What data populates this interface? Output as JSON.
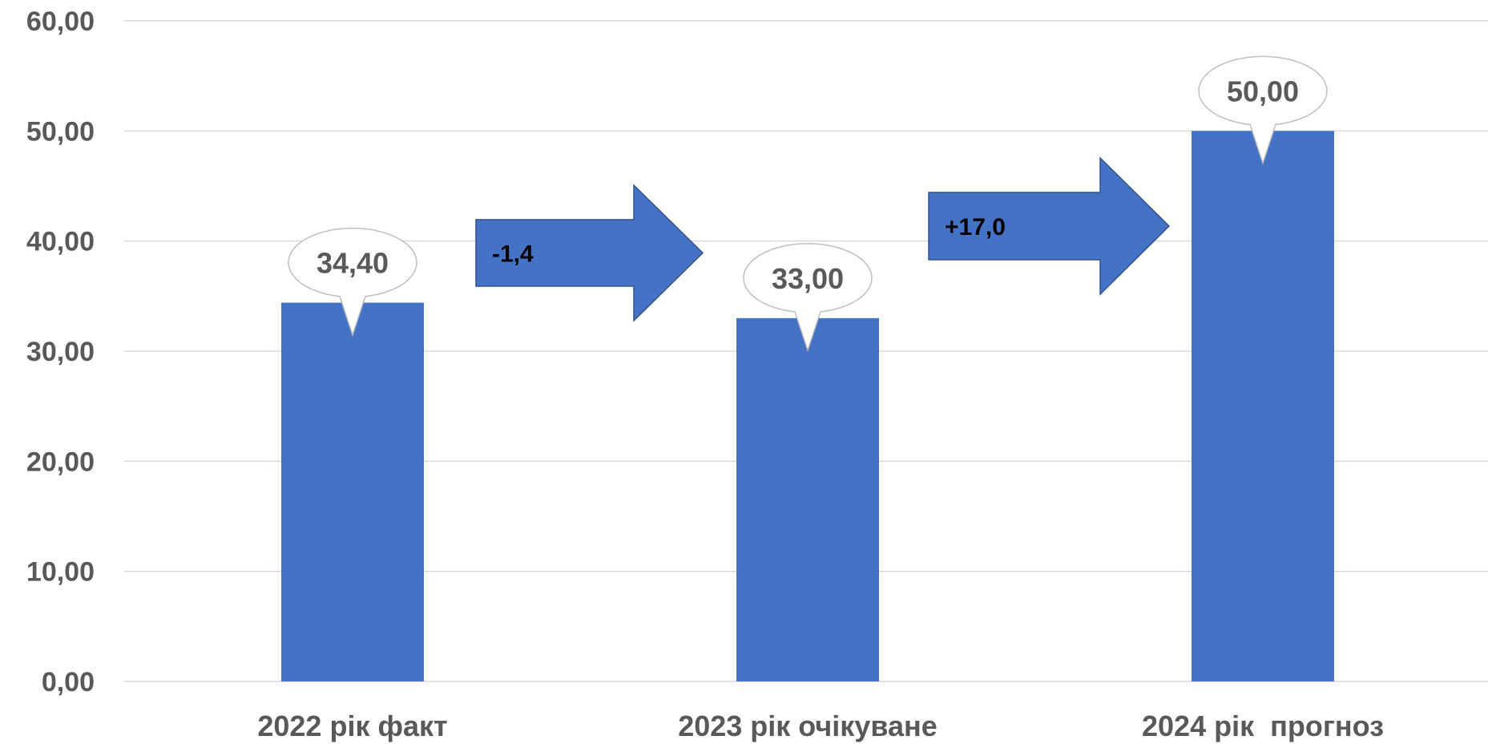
{
  "chart_data": {
    "type": "bar",
    "categories": [
      "2022 рік факт",
      "2023 рік очікуване",
      "2024 рік  прогноз"
    ],
    "values": [
      34.4,
      33.0,
      50.0
    ],
    "data_labels": [
      "34,40",
      "33,00",
      "50,00"
    ],
    "yticks": [
      "0,00",
      "10,00",
      "20,00",
      "30,00",
      "40,00",
      "50,00",
      "60,00"
    ],
    "ylim": [
      0,
      60
    ],
    "grid": true,
    "title": "",
    "xlabel": "",
    "ylabel": "",
    "annotations": [
      {
        "text": "-1,4",
        "from_category": 0,
        "to_category": 1
      },
      {
        "text": "+17,0",
        "from_category": 1,
        "to_category": 2
      }
    ],
    "colors": {
      "bar": "#4472C4",
      "arrow_fill": "#4472C4",
      "arrow_stroke": "#2F528F",
      "grid": "#D9D9D9",
      "tick_text": "#595959",
      "annotation_text": "#000000",
      "callout_fill": "#FFFFFF",
      "callout_stroke": "#BFBFBF"
    }
  }
}
